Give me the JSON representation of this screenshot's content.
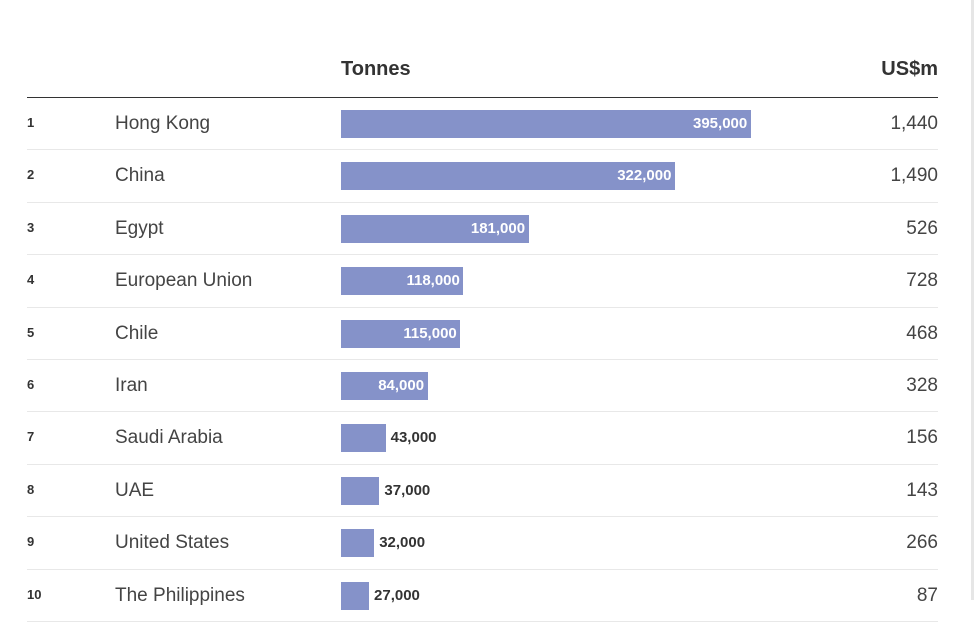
{
  "chart_data": {
    "type": "bar",
    "orientation": "horizontal",
    "columns": [
      "Tonnes",
      "US$m"
    ],
    "max_tonnes": 395000,
    "rows": [
      {
        "rank": "1",
        "country": "Hong Kong",
        "tonnes": 395000,
        "tonnes_label": "395,000",
        "usd": "1,440"
      },
      {
        "rank": "2",
        "country": "China",
        "tonnes": 322000,
        "tonnes_label": "322,000",
        "usd": "1,490"
      },
      {
        "rank": "3",
        "country": "Egypt",
        "tonnes": 181000,
        "tonnes_label": "181,000",
        "usd": "526"
      },
      {
        "rank": "4",
        "country": "European Union",
        "tonnes": 118000,
        "tonnes_label": "118,000",
        "usd": "728"
      },
      {
        "rank": "5",
        "country": "Chile",
        "tonnes": 115000,
        "tonnes_label": "115,000",
        "usd": "468"
      },
      {
        "rank": "6",
        "country": "Iran",
        "tonnes": 84000,
        "tonnes_label": "84,000",
        "usd": "328"
      },
      {
        "rank": "7",
        "country": "Saudi Arabia",
        "tonnes": 43000,
        "tonnes_label": "43,000",
        "usd": "156"
      },
      {
        "rank": "8",
        "country": "UAE",
        "tonnes": 37000,
        "tonnes_label": "37,000",
        "usd": "143"
      },
      {
        "rank": "9",
        "country": "United States",
        "tonnes": 32000,
        "tonnes_label": "32,000",
        "usd": "266"
      },
      {
        "rank": "10",
        "country": "The Philippines",
        "tonnes": 27000,
        "tonnes_label": "27,000",
        "usd": "87"
      }
    ]
  },
  "colors": {
    "bar": "#8592c9",
    "label_inside": "#ffffff",
    "label_outside": "#333333"
  }
}
